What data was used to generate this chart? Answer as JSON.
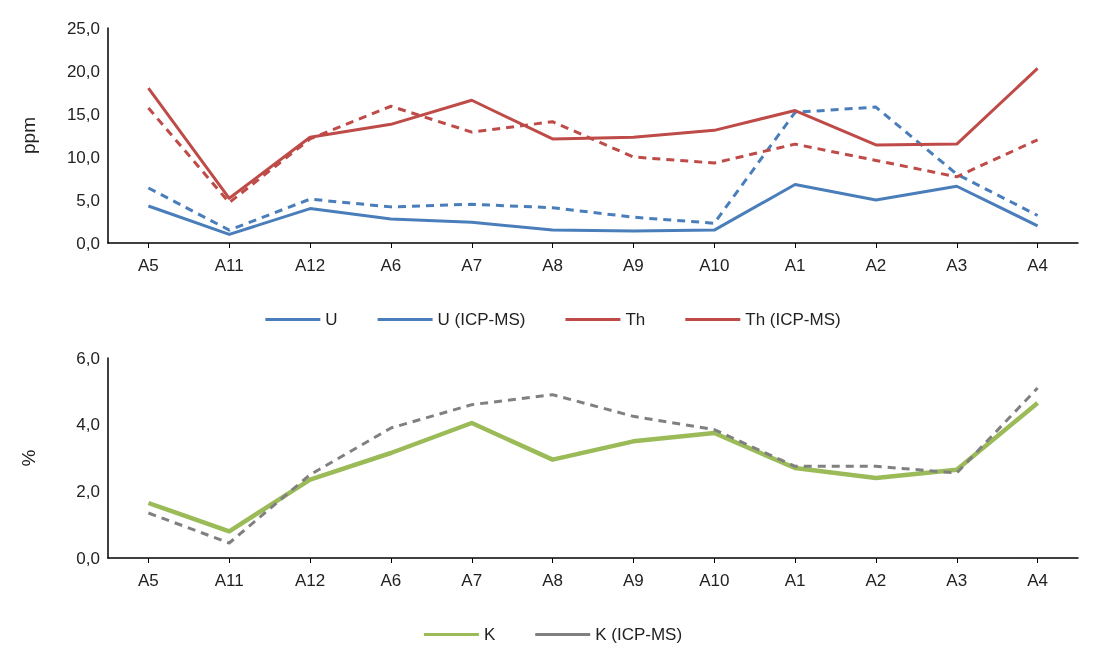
{
  "chart_data": [
    {
      "type": "line",
      "ylabel": "ppm",
      "categories": [
        "A5",
        "A11",
        "A12",
        "A6",
        "A7",
        "A8",
        "A9",
        "A10",
        "A1",
        "A2",
        "A3",
        "A4"
      ],
      "ylim": [
        0,
        25
      ],
      "yticks": [
        {
          "value": 0,
          "label": "0,0"
        },
        {
          "value": 5,
          "label": "5,0"
        },
        {
          "value": 10,
          "label": "10,0"
        },
        {
          "value": 15,
          "label": "15,0"
        },
        {
          "value": 20,
          "label": "20,0"
        },
        {
          "value": 25,
          "label": "25,0"
        }
      ],
      "legend": "bottom",
      "grid": false,
      "marker": "none",
      "series": [
        {
          "name": "U",
          "color": "#4a7ebb",
          "line_style": "solid",
          "values": [
            4.3,
            1.0,
            4.0,
            2.8,
            2.4,
            1.5,
            1.4,
            1.5,
            6.8,
            5.0,
            6.6,
            2.0
          ]
        },
        {
          "name": "U (ICP-MS)",
          "color": "#4a7ebb",
          "line_style": "dashed",
          "values": [
            6.4,
            1.5,
            5.1,
            4.2,
            4.5,
            4.1,
            3.0,
            2.3,
            15.2,
            15.8,
            8.0,
            3.2
          ]
        },
        {
          "name": "Th",
          "color": "#be4b48",
          "line_style": "solid",
          "values": [
            18.0,
            5.2,
            12.3,
            13.8,
            16.6,
            12.1,
            12.3,
            13.1,
            15.4,
            11.4,
            11.5,
            20.3
          ]
        },
        {
          "name": "Th (ICP-MS)",
          "color": "#be4b48",
          "line_style": "dashed",
          "values": [
            15.7,
            4.7,
            12.1,
            15.9,
            12.9,
            14.1,
            10.0,
            9.3,
            11.5,
            9.6,
            7.7,
            12.0
          ]
        }
      ]
    },
    {
      "type": "line",
      "ylabel": "%",
      "categories": [
        "A5",
        "A11",
        "A12",
        "A6",
        "A7",
        "A8",
        "A9",
        "A10",
        "A1",
        "A2",
        "A3",
        "A4"
      ],
      "ylim": [
        0,
        6
      ],
      "yticks": [
        {
          "value": 0,
          "label": "0,0"
        },
        {
          "value": 2,
          "label": "2,0"
        },
        {
          "value": 4,
          "label": "4,0"
        },
        {
          "value": 6,
          "label": "6,0"
        }
      ],
      "legend": "bottom",
      "grid": false,
      "marker": "none",
      "series": [
        {
          "name": "K",
          "color": "#9bbb59",
          "line_style": "solid",
          "values": [
            1.65,
            0.8,
            2.35,
            3.15,
            4.05,
            2.95,
            3.5,
            3.75,
            2.7,
            2.4,
            2.65,
            4.65
          ]
        },
        {
          "name": "K (ICP-MS)",
          "color": "#808080",
          "line_style": "dashed",
          "values": [
            1.35,
            0.45,
            2.5,
            3.9,
            4.6,
            4.9,
            4.25,
            3.85,
            2.75,
            2.75,
            2.55,
            5.1
          ]
        }
      ]
    }
  ]
}
